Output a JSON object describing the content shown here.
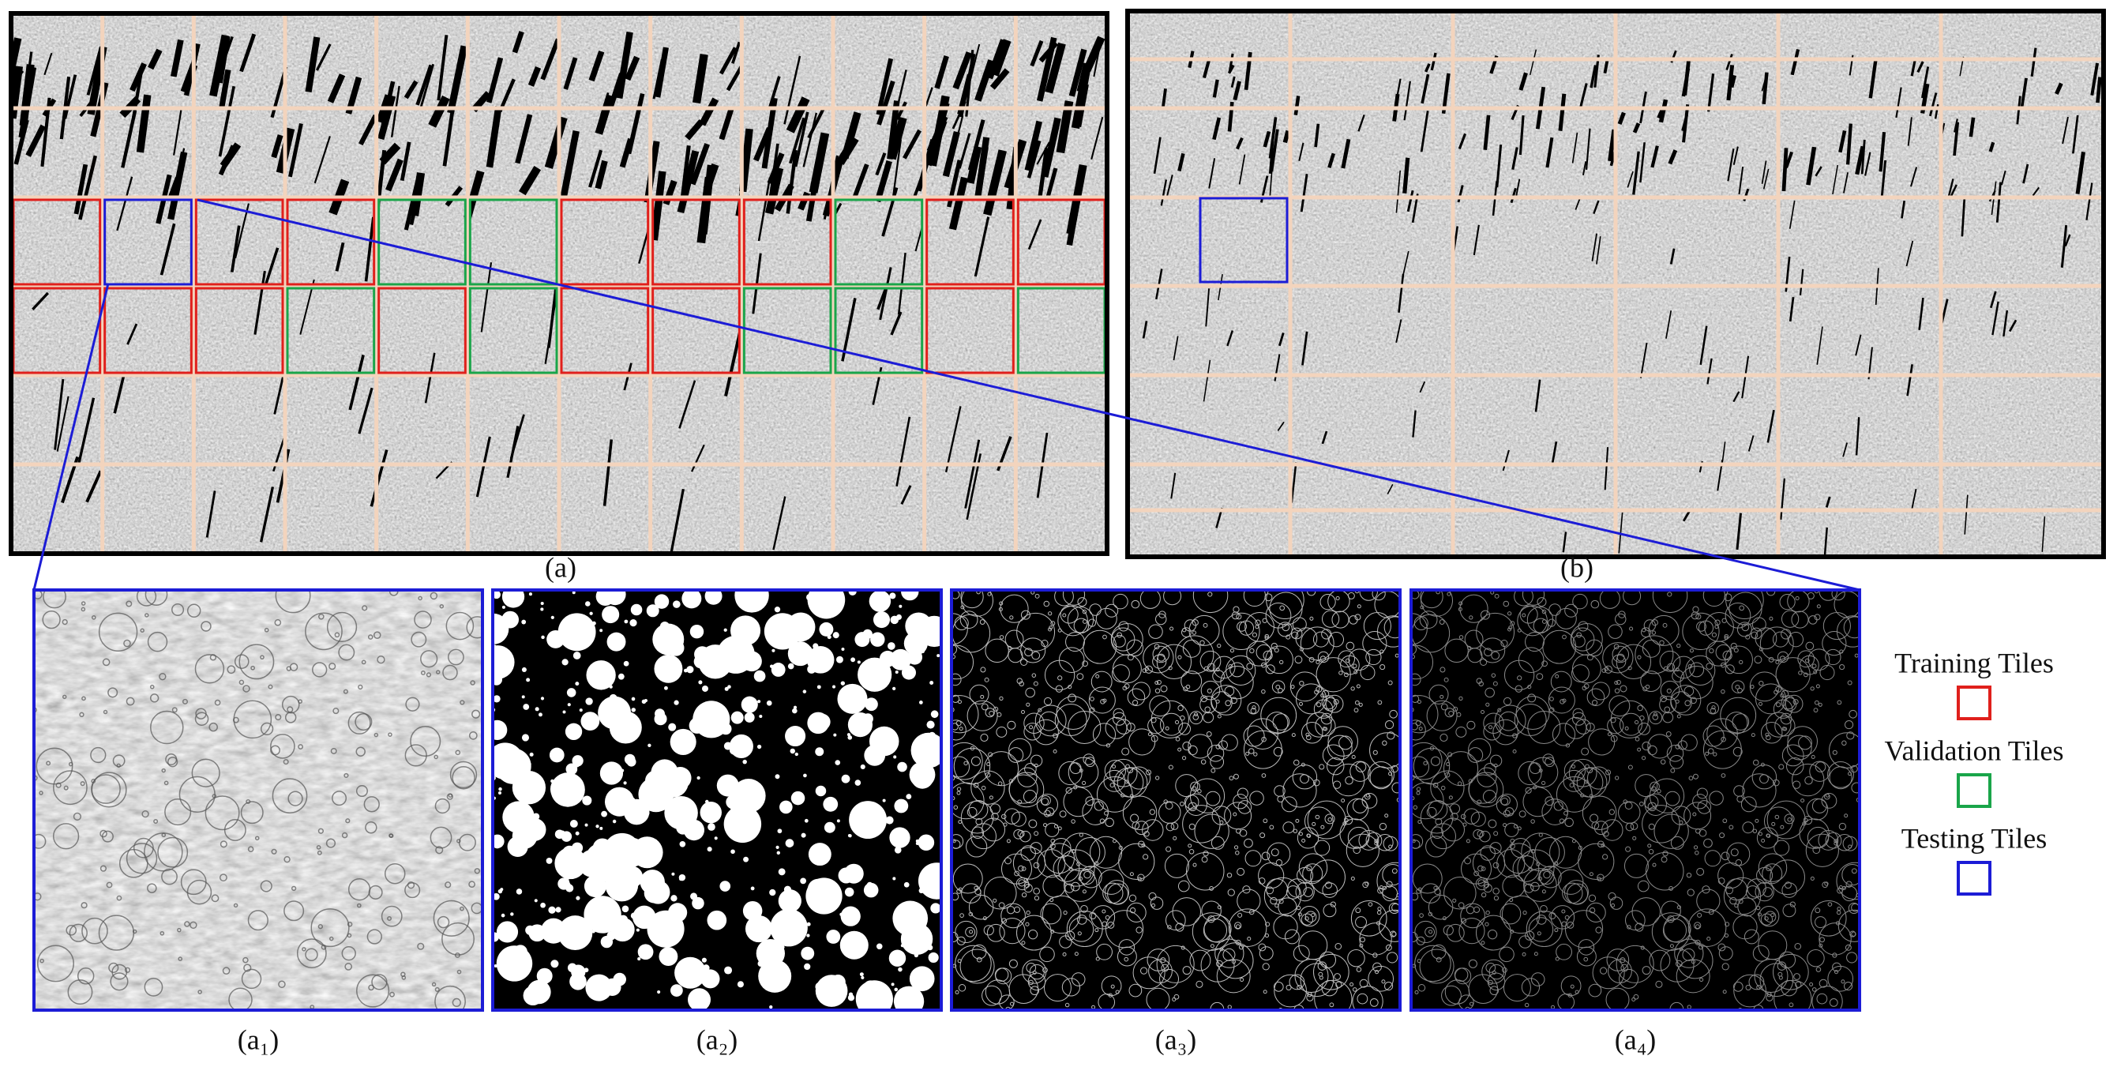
{
  "panels": {
    "a": {
      "label": "(a)",
      "tile_rows": [
        [
          0,
          2,
          0,
          0,
          1,
          1,
          0,
          0,
          0,
          1,
          0,
          0
        ],
        [
          0,
          0,
          0,
          1,
          0,
          1,
          0,
          0,
          1,
          1,
          0,
          1
        ]
      ]
    },
    "b": {
      "label": "(b)"
    }
  },
  "subpanels": [
    {
      "label": "(a₁)"
    },
    {
      "label": "(a₂)"
    },
    {
      "label": "(a₃)"
    },
    {
      "label": "(a₄)"
    }
  ],
  "legend": [
    {
      "label": "Training Tiles",
      "color": "#e0201c"
    },
    {
      "label": "Validation Tiles",
      "color": "#1aa54a"
    },
    {
      "label": "Testing Tiles",
      "color": "#1c1cd6"
    }
  ]
}
